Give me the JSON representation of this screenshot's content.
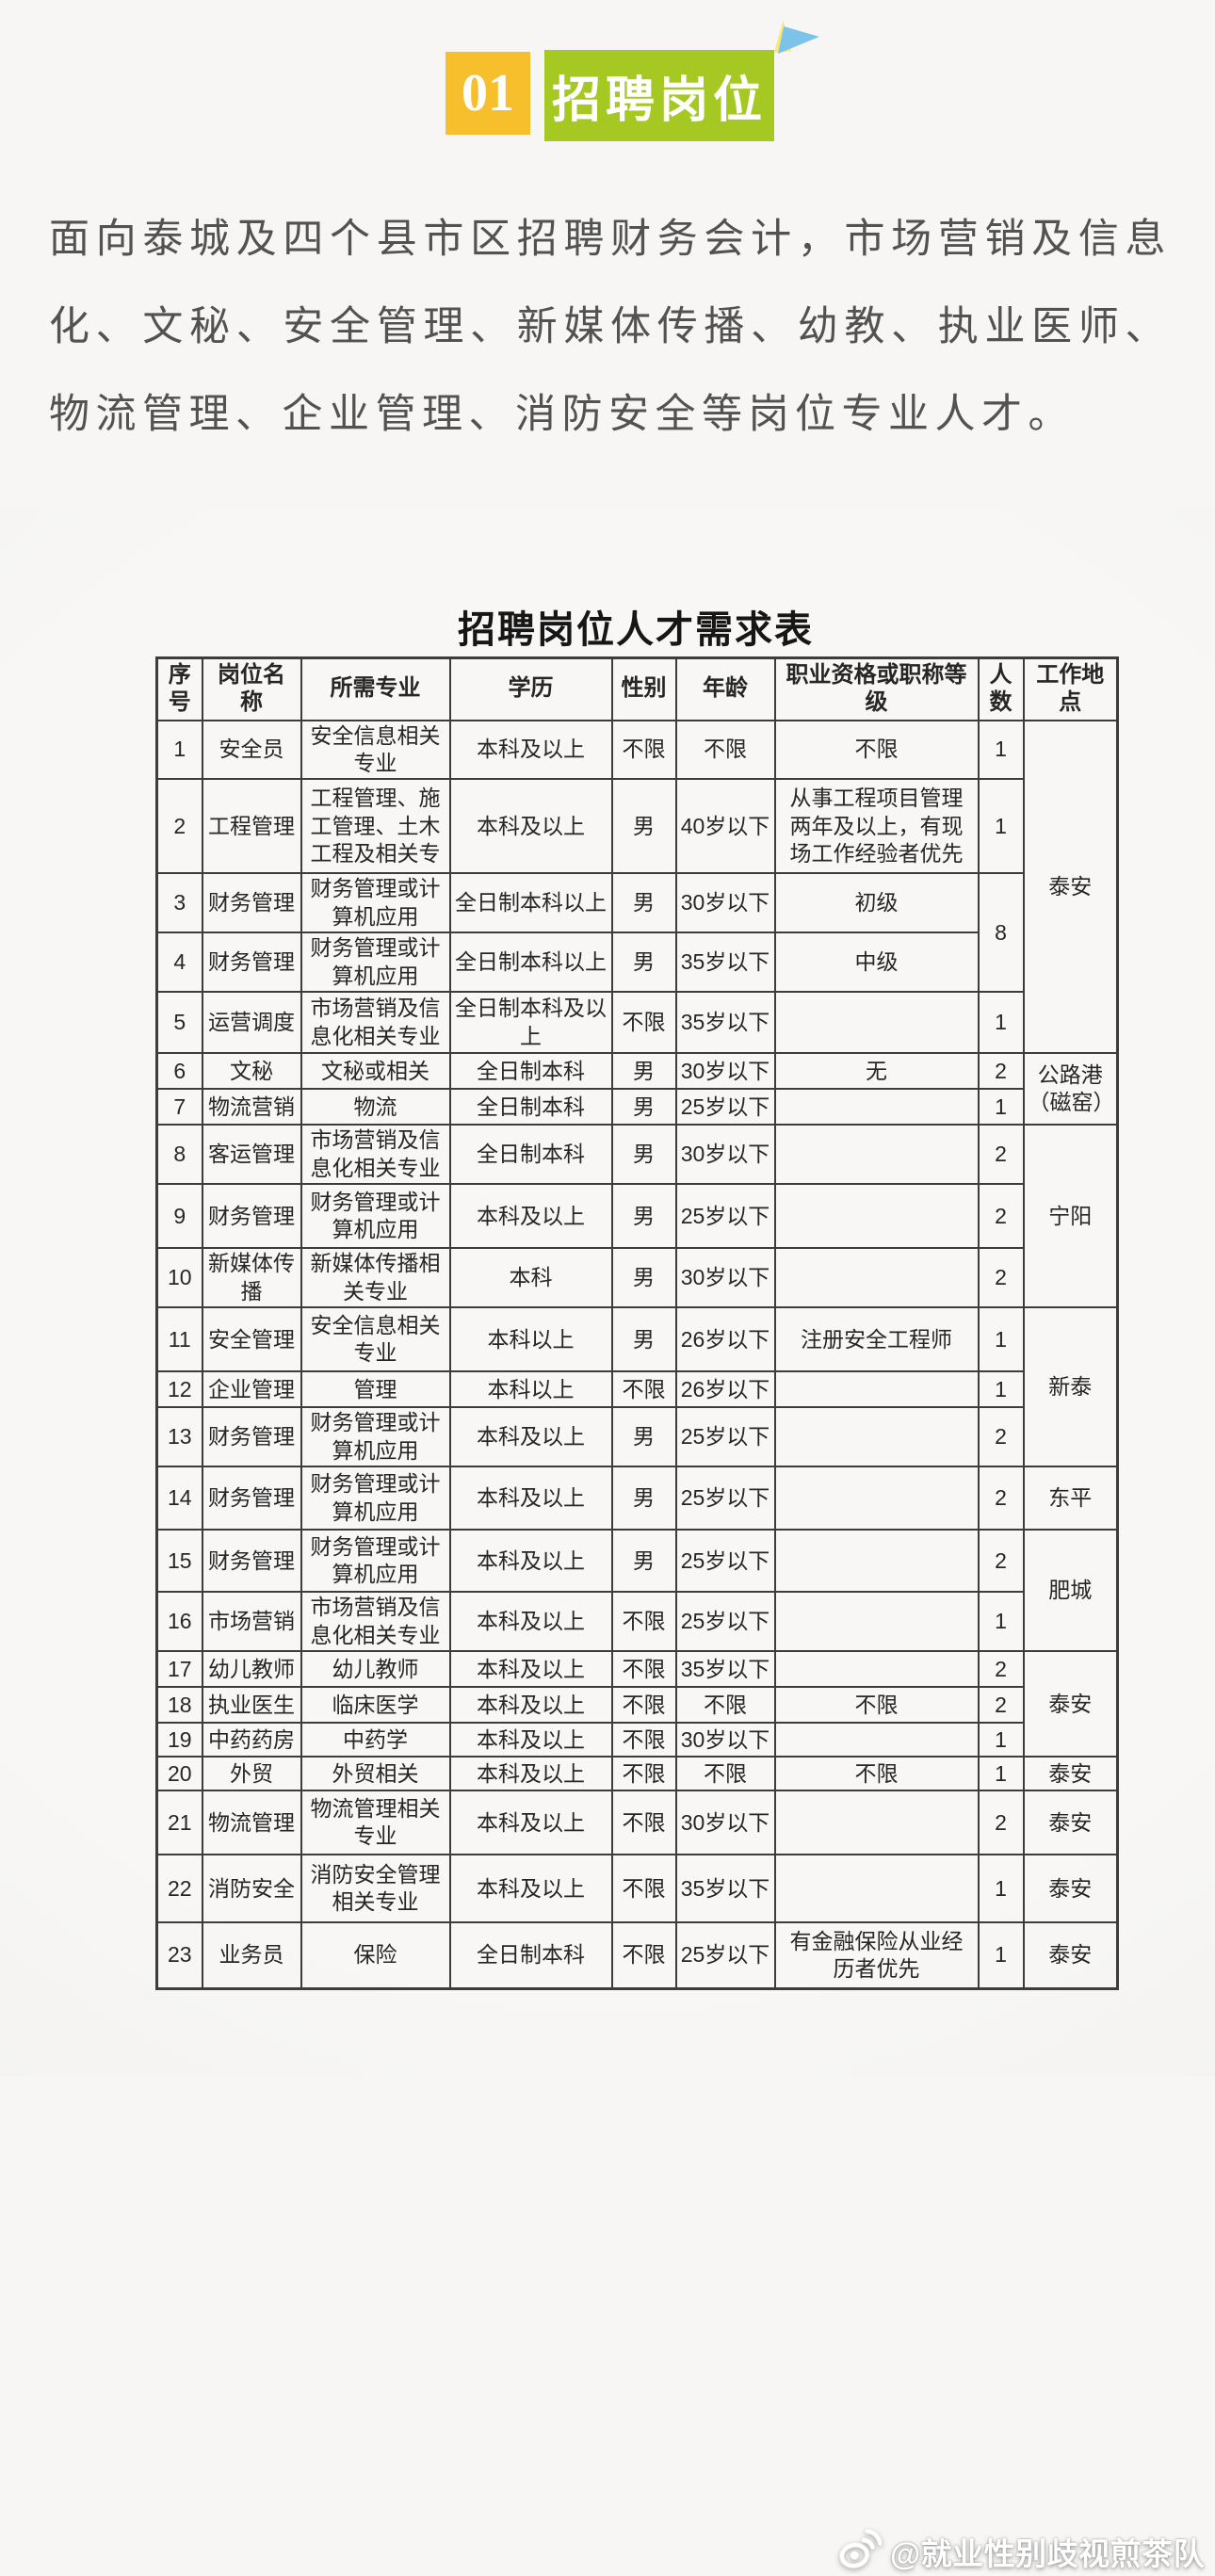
{
  "badge": {
    "number": "01",
    "title": "招聘岗位"
  },
  "intro": "面向泰城及四个县市区招聘财务会计，市场营销及信息化、文秘、安全管理、新媒体传播、幼教、执业医师、物流管理、企业管理、消防安全等岗位专业人才。",
  "table": {
    "title": "招聘岗位人才需求表",
    "headers": [
      "序号",
      "岗位名称",
      "所需专业",
      "学历",
      "性别",
      "年龄",
      "职业资格或职称等级",
      "人数",
      "工作地点"
    ],
    "rows": [
      {
        "no": "1",
        "name": "安全员",
        "major": "安全信息相关专业",
        "degree": "本科及以上",
        "gender": "不限",
        "age": "不限",
        "qual": "不限",
        "count": "1",
        "count_span": 1,
        "location": "泰安",
        "location_span": 5
      },
      {
        "no": "2",
        "name": "工程管理",
        "major": "工程管理、施工管理、土木工程及相关专",
        "degree": "本科及以上",
        "gender": "男",
        "age": "40岁以下",
        "qual": "从事工程项目管理两年及以上，有现场工作经验者优先",
        "count": "1",
        "count_span": 1
      },
      {
        "no": "3",
        "name": "财务管理",
        "major": "财务管理或计算机应用",
        "degree": "全日制本科以上",
        "gender": "男",
        "age": "30岁以下",
        "qual": "初级",
        "count": "8",
        "count_span": 2
      },
      {
        "no": "4",
        "name": "财务管理",
        "major": "财务管理或计算机应用",
        "degree": "全日制本科以上",
        "gender": "男",
        "age": "35岁以下",
        "qual": "中级"
      },
      {
        "no": "5",
        "name": "运营调度",
        "major": "市场营销及信息化相关专业",
        "degree": "全日制本科及以上",
        "gender": "不限",
        "age": "35岁以下",
        "qual": "",
        "count": "1",
        "count_span": 1
      },
      {
        "no": "6",
        "name": "文秘",
        "major": "文秘或相关",
        "degree": "全日制本科",
        "gender": "男",
        "age": "30岁以下",
        "qual": "无",
        "count": "2",
        "count_span": 1,
        "location": "公路港（磁窑）",
        "location_span": 2
      },
      {
        "no": "7",
        "name": "物流营销",
        "major": "物流",
        "degree": "全日制本科",
        "gender": "男",
        "age": "25岁以下",
        "qual": "",
        "count": "1",
        "count_span": 1
      },
      {
        "no": "8",
        "name": "客运管理",
        "major": "市场营销及信息化相关专业",
        "degree": "全日制本科",
        "gender": "男",
        "age": "30岁以下",
        "qual": "",
        "count": "2",
        "count_span": 1,
        "location": "宁阳",
        "location_span": 3
      },
      {
        "no": "9",
        "name": "财务管理",
        "major": "财务管理或计算机应用",
        "degree": "本科及以上",
        "gender": "男",
        "age": "25岁以下",
        "qual": "",
        "count": "2",
        "count_span": 1
      },
      {
        "no": "10",
        "name": "新媒体传播",
        "major": "新媒体传播相关专业",
        "degree": "本科",
        "gender": "男",
        "age": "30岁以下",
        "qual": "",
        "count": "2",
        "count_span": 1
      },
      {
        "no": "11",
        "name": "安全管理",
        "major": "安全信息相关专业",
        "degree": "本科以上",
        "gender": "男",
        "age": "26岁以下",
        "qual": "注册安全工程师",
        "count": "1",
        "count_span": 1,
        "location": "新泰",
        "location_span": 3
      },
      {
        "no": "12",
        "name": "企业管理",
        "major": "管理",
        "degree": "本科以上",
        "gender": "不限",
        "age": "26岁以下",
        "qual": "",
        "count": "1",
        "count_span": 1
      },
      {
        "no": "13",
        "name": "财务管理",
        "major": "财务管理或计算机应用",
        "degree": "本科及以上",
        "gender": "男",
        "age": "25岁以下",
        "qual": "",
        "count": "2",
        "count_span": 1
      },
      {
        "no": "14",
        "name": "财务管理",
        "major": "财务管理或计算机应用",
        "degree": "本科及以上",
        "gender": "男",
        "age": "25岁以下",
        "qual": "",
        "count": "2",
        "count_span": 1,
        "location": "东平",
        "location_span": 1
      },
      {
        "no": "15",
        "name": "财务管理",
        "major": "财务管理或计算机应用",
        "degree": "本科及以上",
        "gender": "男",
        "age": "25岁以下",
        "qual": "",
        "count": "2",
        "count_span": 1,
        "location": "肥城",
        "location_span": 2
      },
      {
        "no": "16",
        "name": "市场营销",
        "major": "市场营销及信息化相关专业",
        "degree": "本科及以上",
        "gender": "不限",
        "age": "25岁以下",
        "qual": "",
        "count": "1",
        "count_span": 1
      },
      {
        "no": "17",
        "name": "幼儿教师",
        "major": "幼儿教师",
        "degree": "本科及以上",
        "gender": "不限",
        "age": "35岁以下",
        "qual": "",
        "count": "2",
        "count_span": 1,
        "location": "泰安",
        "location_span": 3
      },
      {
        "no": "18",
        "name": "执业医生",
        "major": "临床医学",
        "degree": "本科及以上",
        "gender": "不限",
        "age": "不限",
        "qual": "不限",
        "count": "2",
        "count_span": 1
      },
      {
        "no": "19",
        "name": "中药药房",
        "major": "中药学",
        "degree": "本科及以上",
        "gender": "不限",
        "age": "30岁以下",
        "qual": "",
        "count": "1",
        "count_span": 1
      },
      {
        "no": "20",
        "name": "外贸",
        "major": "外贸相关",
        "degree": "本科及以上",
        "gender": "不限",
        "age": "不限",
        "qual": "不限",
        "count": "1",
        "count_span": 1,
        "location": "泰安",
        "location_span": 1
      },
      {
        "no": "21",
        "name": "物流管理",
        "major": "物流管理相关专业",
        "degree": "本科及以上",
        "gender": "不限",
        "age": "30岁以下",
        "qual": "",
        "count": "2",
        "count_span": 1,
        "location": "泰安",
        "location_span": 1
      },
      {
        "no": "22",
        "name": "消防安全",
        "major": "消防安全管理相关专业",
        "degree": "本科及以上",
        "gender": "不限",
        "age": "35岁以下",
        "qual": "",
        "count": "1",
        "count_span": 1,
        "location": "泰安",
        "location_span": 1
      },
      {
        "no": "23",
        "name": "业务员",
        "major": "保险",
        "degree": "全日制本科",
        "gender": "不限",
        "age": "25岁以下",
        "qual": "有金融保险从业经历者优先",
        "count": "1",
        "count_span": 1,
        "location": "泰安",
        "location_span": 1
      }
    ]
  },
  "watermark": {
    "icon": "weibo-icon",
    "text": "@就业性别歧视煎茶队"
  },
  "colors": {
    "badge_orange": "#f6bf2b",
    "badge_green": "#a5c822",
    "triangle_yellow": "#f7e87a",
    "triangle_blue": "#7cc3ea",
    "table_line": "#3c3c3c",
    "intro_text": "#525252",
    "watermark_text": "#ffffff"
  }
}
